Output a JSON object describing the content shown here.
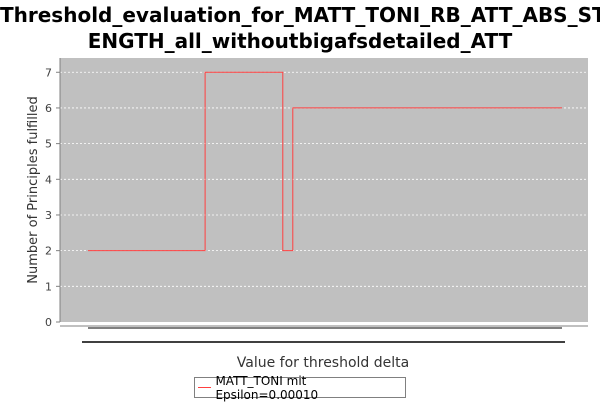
{
  "chart_data": {
    "type": "line",
    "title": "Threshold_evaluation_for_MATT_TONI_RB_ATT_ABS_STRENGTH_all_withoutbigafsdetailed_ATT",
    "title_lines": [
      "Threshold_evaluation_for_MATT_TONI_RB_ATT_ABS_STR",
      "ENGTH_all_withoutbigafsdetailed_ATT"
    ],
    "xlabel": "Value for threshold delta",
    "ylabel": "Number of Principles fulfilled",
    "ylim": [
      0,
      7.4
    ],
    "yticks": [
      0,
      1,
      2,
      3,
      4,
      5,
      6,
      7
    ],
    "xlim": [
      0,
      1
    ],
    "grid": true,
    "background": "#c0c0c0",
    "series": [
      {
        "name": "MATT_TONI mit Epsilon=0.00010",
        "color": "#ff4040",
        "x": [
          0.0,
          0.247,
          0.247,
          0.411,
          0.411,
          0.432,
          0.432,
          1.0
        ],
        "y": [
          2,
          2,
          7,
          7,
          2,
          2,
          6,
          6
        ]
      }
    ]
  }
}
